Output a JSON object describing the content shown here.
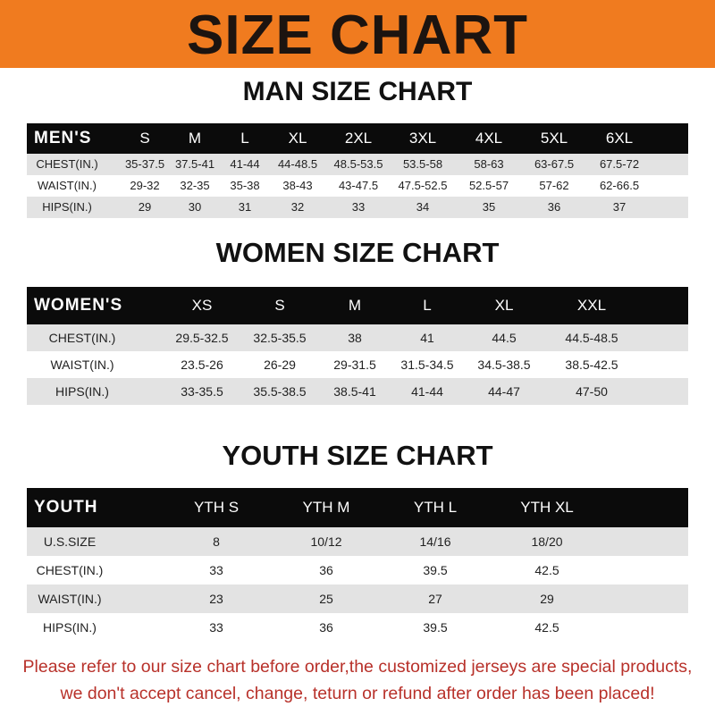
{
  "banner": {
    "title": "SIZE CHART",
    "color": "#f07b1f"
  },
  "men": {
    "title": "MAN SIZE CHART",
    "header": [
      "MEN'S",
      "S",
      "M",
      "L",
      "XL",
      "2XL",
      "3XL",
      "4XL",
      "5XL",
      "6XL"
    ],
    "rows": [
      [
        "CHEST(IN.)",
        "35-37.5",
        "37.5-41",
        "41-44",
        "44-48.5",
        "48.5-53.5",
        "53.5-58",
        "58-63",
        "63-67.5",
        "67.5-72"
      ],
      [
        "WAIST(IN.)",
        "29-32",
        "32-35",
        "35-38",
        "38-43",
        "43-47.5",
        "47.5-52.5",
        "52.5-57",
        "57-62",
        "62-66.5"
      ],
      [
        "HIPS(IN.)",
        "29",
        "30",
        "31",
        "32",
        "33",
        "34",
        "35",
        "36",
        "37"
      ]
    ]
  },
  "women": {
    "title": "WOMEN SIZE CHART",
    "header": [
      "WOMEN'S",
      "XS",
      "S",
      "M",
      "L",
      "XL",
      "XXL"
    ],
    "rows": [
      [
        "CHEST(IN.)",
        "29.5-32.5",
        "32.5-35.5",
        "38",
        "41",
        "44.5",
        "44.5-48.5"
      ],
      [
        "WAIST(IN.)",
        "23.5-26",
        "26-29",
        "29-31.5",
        "31.5-34.5",
        "34.5-38.5",
        "38.5-42.5"
      ],
      [
        "HIPS(IN.)",
        "33-35.5",
        "35.5-38.5",
        "38.5-41",
        "41-44",
        "44-47",
        "47-50"
      ]
    ]
  },
  "youth": {
    "title": "YOUTH SIZE CHART",
    "header": [
      "YOUTH",
      "YTH S",
      "YTH M",
      "YTH L",
      "YTH XL"
    ],
    "rows": [
      [
        "U.S.SIZE",
        "8",
        "10/12",
        "14/16",
        "18/20"
      ],
      [
        "CHEST(IN.)",
        "33",
        "36",
        "39.5",
        "42.5"
      ],
      [
        "WAIST(IN.)",
        "23",
        "25",
        "27",
        "29"
      ],
      [
        "HIPS(IN.)",
        "33",
        "36",
        "39.5",
        "42.5"
      ]
    ]
  },
  "footer": {
    "line1": "Please refer to our size chart before order,the customized jerseys are special products,",
    "line2": "we don't accept cancel, change, teturn or refund after order has been placed!",
    "color": "#b8312a"
  }
}
